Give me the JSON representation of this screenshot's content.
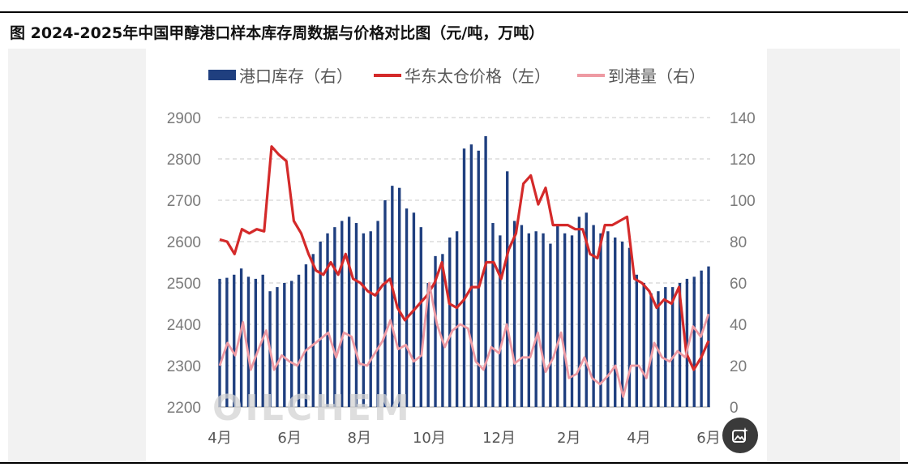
{
  "header": {
    "title": "图  2024-2025年中国甲醇港口样本库存周数据与价格对比图（元/吨，万吨）"
  },
  "watermark": "OILCHEM",
  "icons": {
    "image_tool": "image-sparkle-icon"
  },
  "chart_data": {
    "type": "bar+line",
    "title": "2024-2025年中国甲醇港口样本库存周数据与价格对比图（元/吨，万吨）",
    "legend_position": "top",
    "grid": "horizontal-dashed",
    "x_tick_labels": [
      "4月",
      "6月",
      "8月",
      "10月",
      "12月",
      "2月",
      "4月",
      "6月"
    ],
    "y_left": {
      "min": 2200,
      "max": 2900,
      "ticks": [
        2200,
        2300,
        2400,
        2500,
        2600,
        2700,
        2800,
        2900
      ]
    },
    "y_right": {
      "min": 0,
      "max": 140,
      "ticks": [
        0,
        20,
        40,
        60,
        80,
        100,
        120,
        140
      ]
    },
    "series": [
      {
        "name": "港口库存（右）",
        "type": "bar",
        "axis": "right",
        "color": "#1f3f7f",
        "values": [
          62,
          62.5,
          64,
          67,
          63,
          62,
          64,
          56,
          58,
          60,
          61,
          64,
          69,
          74,
          80,
          84,
          87,
          90,
          92,
          89,
          84,
          85,
          90,
          100,
          107,
          106,
          96,
          94,
          87,
          60,
          73,
          74,
          82,
          85,
          125,
          127,
          124,
          131,
          89,
          83,
          114,
          90,
          88,
          84,
          85,
          84,
          79,
          88,
          84,
          83,
          92,
          94,
          88,
          84,
          85,
          82,
          80,
          77,
          64,
          60,
          55,
          56,
          58,
          58,
          60,
          62,
          63,
          66,
          68
        ]
      },
      {
        "name": "华东太仓价格（左）",
        "type": "line",
        "axis": "left",
        "color": "#d42a2a",
        "values": [
          2605,
          2600,
          2570,
          2630,
          2620,
          2630,
          2625,
          2830,
          2810,
          2795,
          2650,
          2620,
          2570,
          2530,
          2520,
          2550,
          2520,
          2570,
          2510,
          2500,
          2480,
          2470,
          2495,
          2510,
          2440,
          2410,
          2430,
          2450,
          2470,
          2500,
          2550,
          2450,
          2440,
          2460,
          2490,
          2490,
          2550,
          2550,
          2510,
          2580,
          2620,
          2740,
          2760,
          2690,
          2730,
          2640,
          2640,
          2640,
          2630,
          2630,
          2570,
          2560,
          2640,
          2640,
          2650,
          2660,
          2510,
          2500,
          2480,
          2440,
          2460,
          2450,
          2490,
          2330,
          2290,
          2320,
          2360
        ]
      },
      {
        "name": "到港量（右）",
        "type": "line",
        "axis": "right",
        "color": "#ee9aa3",
        "values": [
          20,
          31,
          25,
          41,
          18,
          28,
          37,
          18,
          25,
          22,
          20,
          27,
          30,
          33,
          36,
          24,
          36,
          34,
          21,
          20,
          26,
          32,
          42,
          28,
          30,
          22,
          25,
          60,
          40,
          29,
          37,
          40,
          38,
          22,
          18,
          29,
          26,
          40,
          21,
          24,
          24,
          36,
          17,
          24,
          36,
          14,
          16,
          24,
          14,
          11,
          15,
          20,
          5,
          20,
          20,
          14,
          31,
          24,
          22,
          27,
          24,
          39,
          34,
          45
        ]
      }
    ]
  }
}
